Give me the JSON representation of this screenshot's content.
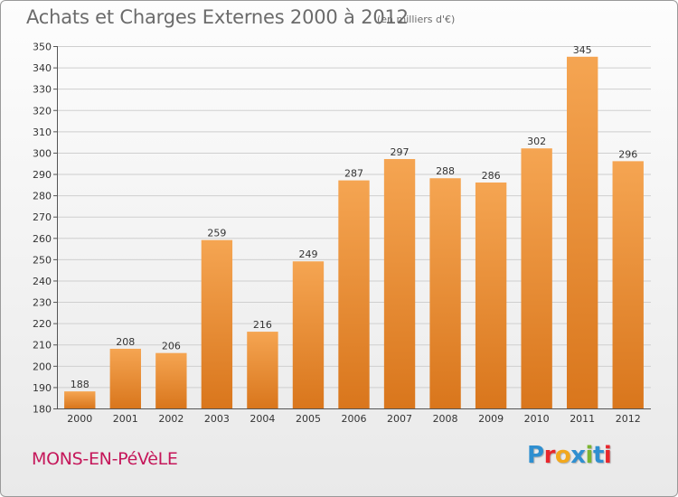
{
  "header": {
    "title": "Achats et Charges Externes 2000 à 2012",
    "subtitle": "(en milliers d'€)"
  },
  "footer": {
    "commune": "MONS-EN-PéVèLE",
    "brand_letters": [
      "P",
      "r",
      "o",
      "x",
      "i",
      "t",
      "i"
    ],
    "brand_colors": [
      "#2f8fd0",
      "#e8262c",
      "#f2a81d",
      "#2f8fd0",
      "#7cb531",
      "#2f8fd0",
      "#e8262c"
    ]
  },
  "colors": {
    "bar_light": "#f5a552",
    "bar_dark": "#d9761c",
    "grid": "#cfcfcf",
    "axis_text": "#333333",
    "commune": "#c5175a"
  },
  "chart_data": {
    "type": "bar",
    "title": "Achats et Charges Externes 2000 à 2012",
    "subtitle": "(en milliers d'€)",
    "categories": [
      "2000",
      "2001",
      "2002",
      "2003",
      "2004",
      "2005",
      "2006",
      "2007",
      "2008",
      "2009",
      "2010",
      "2011",
      "2012"
    ],
    "values": [
      188,
      208,
      206,
      259,
      216,
      249,
      287,
      297,
      288,
      286,
      302,
      345,
      296
    ],
    "ylim": [
      180,
      350
    ],
    "yticks": [
      180,
      190,
      200,
      210,
      220,
      230,
      240,
      250,
      260,
      270,
      280,
      290,
      300,
      310,
      320,
      330,
      340,
      350
    ],
    "grid": true,
    "xlabel": "",
    "ylabel": ""
  }
}
